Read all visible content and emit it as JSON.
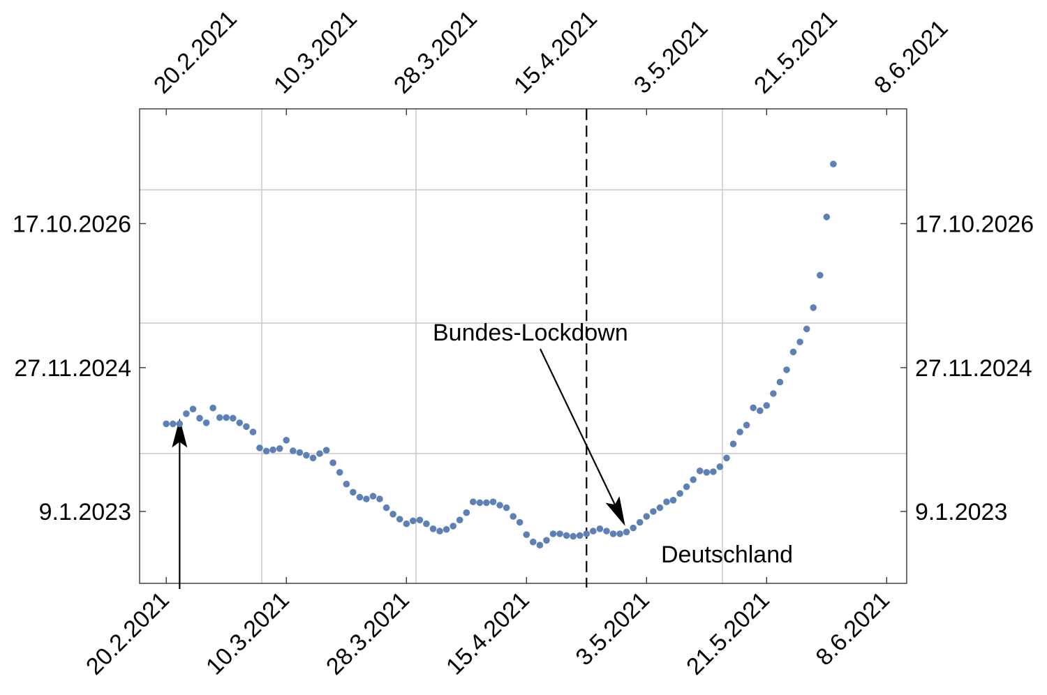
{
  "chart_data": {
    "type": "scatter",
    "x_axis": {
      "type": "date",
      "ticks": [
        "20.2.2021",
        "10.3.2021",
        "28.3.2021",
        "15.4.2021",
        "3.5.2021",
        "21.5.2021",
        "8.6.2021"
      ],
      "range": [
        "2021-02-16",
        "2021-06-11"
      ]
    },
    "y_axis": {
      "type": "date",
      "ticks": [
        "9.1.2023",
        "27.11.2024",
        "17.10.2026"
      ],
      "range": [
        "2022-01-30",
        "2028-04-18"
      ]
    },
    "grid": true,
    "series": [
      {
        "color": "#5e81b5",
        "points": [
          [
            "2021-02-20",
            "2024-03-03"
          ],
          [
            "2021-02-21",
            "2024-03-03"
          ],
          [
            "2021-02-22",
            "2024-03-03"
          ],
          [
            "2021-02-23",
            "2024-04-21"
          ],
          [
            "2021-02-24",
            "2024-05-13"
          ],
          [
            "2021-02-25",
            "2024-03-30"
          ],
          [
            "2021-02-26",
            "2024-03-08"
          ],
          [
            "2021-02-27",
            "2024-05-18"
          ],
          [
            "2021-02-28",
            "2024-04-02"
          ],
          [
            "2021-03-01",
            "2024-04-02"
          ],
          [
            "2021-03-02",
            "2024-03-30"
          ],
          [
            "2021-03-03",
            "2024-03-08"
          ],
          [
            "2021-03-04",
            "2024-02-19"
          ],
          [
            "2021-03-05",
            "2024-01-24"
          ],
          [
            "2021-03-06",
            "2023-11-09"
          ],
          [
            "2021-03-07",
            "2023-10-25"
          ],
          [
            "2021-03-08",
            "2023-10-31"
          ],
          [
            "2021-03-09",
            "2023-11-06"
          ],
          [
            "2021-03-10",
            "2023-12-16"
          ],
          [
            "2021-03-11",
            "2023-10-26"
          ],
          [
            "2021-03-12",
            "2023-10-18"
          ],
          [
            "2021-03-13",
            "2023-10-05"
          ],
          [
            "2021-03-14",
            "2023-09-22"
          ],
          [
            "2021-03-15",
            "2023-10-13"
          ],
          [
            "2021-03-16",
            "2023-10-29"
          ],
          [
            "2021-03-17",
            "2023-08-30"
          ],
          [
            "2021-03-18",
            "2023-07-15"
          ],
          [
            "2021-03-19",
            "2023-05-20"
          ],
          [
            "2021-03-20",
            "2023-04-11"
          ],
          [
            "2021-03-21",
            "2023-03-18"
          ],
          [
            "2021-03-22",
            "2023-03-10"
          ],
          [
            "2021-03-23",
            "2023-03-23"
          ],
          [
            "2021-03-24",
            "2023-03-10"
          ],
          [
            "2021-03-25",
            "2023-01-27"
          ],
          [
            "2021-03-26",
            "2022-12-27"
          ],
          [
            "2021-03-27",
            "2022-12-03"
          ],
          [
            "2021-03-28",
            "2022-11-11"
          ],
          [
            "2021-03-29",
            "2022-11-25"
          ],
          [
            "2021-03-30",
            "2022-11-29"
          ],
          [
            "2021-03-31",
            "2022-11-11"
          ],
          [
            "2021-04-01",
            "2022-10-18"
          ],
          [
            "2021-04-02",
            "2022-10-07"
          ],
          [
            "2021-04-03",
            "2022-10-15"
          ],
          [
            "2021-04-04",
            "2022-10-31"
          ],
          [
            "2021-04-05",
            "2022-11-29"
          ],
          [
            "2021-04-06",
            "2023-01-03"
          ],
          [
            "2021-04-07",
            "2023-02-24"
          ],
          [
            "2021-04-08",
            "2023-02-20"
          ],
          [
            "2021-04-09",
            "2023-02-20"
          ],
          [
            "2021-04-10",
            "2023-02-24"
          ],
          [
            "2021-04-11",
            "2023-02-08"
          ],
          [
            "2021-04-12",
            "2023-01-27"
          ],
          [
            "2021-04-13",
            "2022-12-16"
          ],
          [
            "2021-04-14",
            "2022-11-18"
          ],
          [
            "2021-04-15",
            "2022-09-20"
          ],
          [
            "2021-04-16",
            "2022-08-16"
          ],
          [
            "2021-04-17",
            "2022-08-01"
          ],
          [
            "2021-04-18",
            "2022-08-24"
          ],
          [
            "2021-04-19",
            "2022-09-24"
          ],
          [
            "2021-04-20",
            "2022-09-24"
          ],
          [
            "2021-04-21",
            "2022-09-16"
          ],
          [
            "2021-04-22",
            "2022-09-12"
          ],
          [
            "2021-04-23",
            "2022-09-16"
          ],
          [
            "2021-04-24",
            "2022-09-24"
          ],
          [
            "2021-04-25",
            "2022-10-07"
          ],
          [
            "2021-04-26",
            "2022-10-18"
          ],
          [
            "2021-04-27",
            "2022-10-07"
          ],
          [
            "2021-04-28",
            "2022-09-24"
          ],
          [
            "2021-04-29",
            "2022-09-24"
          ],
          [
            "2021-04-30",
            "2022-10-03"
          ],
          [
            "2021-05-01",
            "2022-10-22"
          ],
          [
            "2021-05-02",
            "2022-11-18"
          ],
          [
            "2021-05-03",
            "2022-12-16"
          ],
          [
            "2021-05-04",
            "2023-01-09"
          ],
          [
            "2021-05-05",
            "2023-01-27"
          ],
          [
            "2021-05-06",
            "2023-02-24"
          ],
          [
            "2021-05-07",
            "2023-03-04"
          ],
          [
            "2021-05-08",
            "2023-04-05"
          ],
          [
            "2021-05-09",
            "2023-05-07"
          ],
          [
            "2021-05-10",
            "2023-06-10"
          ],
          [
            "2021-05-11",
            "2023-07-22"
          ],
          [
            "2021-05-12",
            "2023-07-15"
          ],
          [
            "2021-05-13",
            "2023-07-18"
          ],
          [
            "2021-05-14",
            "2023-08-11"
          ],
          [
            "2021-05-15",
            "2023-09-22"
          ],
          [
            "2021-05-16",
            "2023-11-28"
          ],
          [
            "2021-05-17",
            "2024-01-24"
          ],
          [
            "2021-05-18",
            "2024-02-26"
          ],
          [
            "2021-05-19",
            "2024-05-19"
          ],
          [
            "2021-05-20",
            "2024-05-05"
          ],
          [
            "2021-05-21",
            "2024-05-30"
          ],
          [
            "2021-05-22",
            "2024-07-26"
          ],
          [
            "2021-05-23",
            "2024-09-19"
          ],
          [
            "2021-05-24",
            "2024-11-17"
          ],
          [
            "2021-05-25",
            "2025-02-10"
          ],
          [
            "2021-05-26",
            "2025-03-30"
          ],
          [
            "2021-05-27",
            "2025-05-31"
          ],
          [
            "2021-05-28",
            "2025-09-10"
          ],
          [
            "2021-05-29",
            "2026-02-12"
          ],
          [
            "2021-05-30",
            "2026-11-18"
          ],
          [
            "2021-05-31",
            "2027-07-29"
          ]
        ]
      }
    ],
    "annotations": [
      {
        "text": "Bundes-Lockdown",
        "points_to": [
          "2021-04-30",
          "2022-10-15"
        ]
      },
      {
        "text": "Deutschland"
      }
    ],
    "markers": {
      "vertical_dashed_line_x": "2021-04-24",
      "up_arrow_x": "2021-02-22",
      "up_arrow_tip_y": "2024-03-30"
    }
  }
}
